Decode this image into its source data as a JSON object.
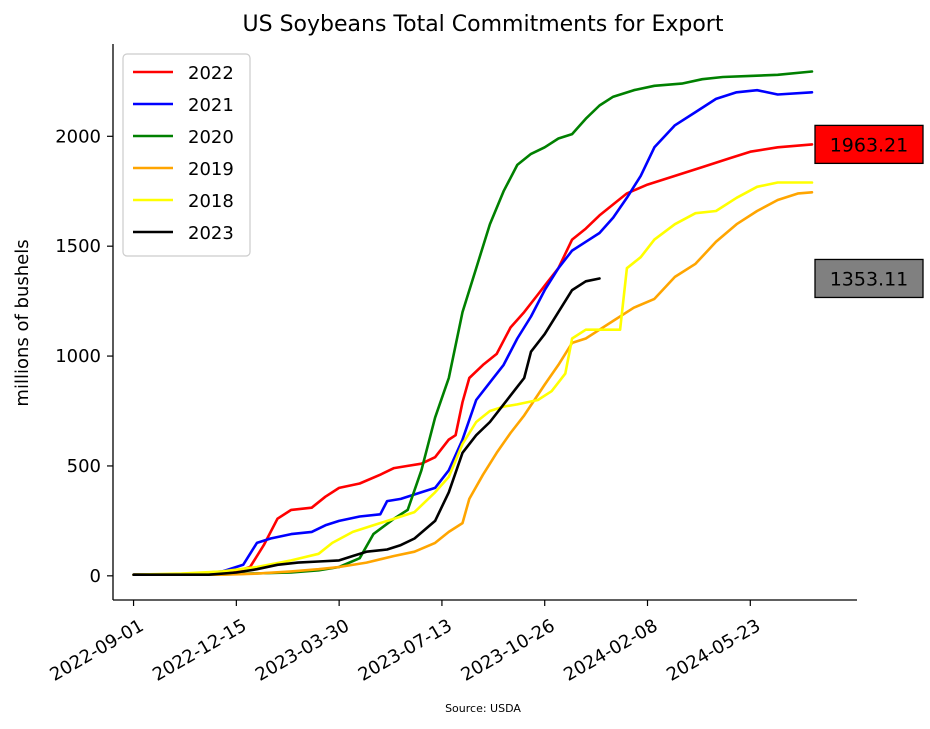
{
  "chart_data": {
    "type": "line",
    "title": "US Soybeans Total Commitments for Export",
    "ylabel": "millions of bushels",
    "xlabel": "",
    "source": "Source: USDA",
    "x_ticks": [
      "2022-09-01",
      "2022-12-15",
      "2023-03-30",
      "2023-07-13",
      "2023-10-26",
      "2024-02-08",
      "2024-05-23"
    ],
    "y_ticks": [
      "0",
      "500",
      "1000",
      "1500",
      "2000"
    ],
    "ylim": [
      -110,
      2420
    ],
    "xlim": [
      "2022-08-11",
      "2024-09-09"
    ],
    "grid": false,
    "legend_position": "upper-left",
    "series": [
      {
        "name": "2022",
        "color": "#ff0000",
        "points": [
          [
            "2022-09-01",
            5
          ],
          [
            "2022-10-20",
            5
          ],
          [
            "2022-11-24",
            10
          ],
          [
            "2022-12-15",
            20
          ],
          [
            "2022-12-29",
            40
          ],
          [
            "2023-01-12",
            140
          ],
          [
            "2023-01-26",
            260
          ],
          [
            "2023-02-09",
            300
          ],
          [
            "2023-03-02",
            310
          ],
          [
            "2023-03-16",
            360
          ],
          [
            "2023-03-30",
            400
          ],
          [
            "2023-04-20",
            420
          ],
          [
            "2023-05-11",
            460
          ],
          [
            "2023-05-25",
            490
          ],
          [
            "2023-06-08",
            500
          ],
          [
            "2023-06-22",
            510
          ],
          [
            "2023-07-06",
            540
          ],
          [
            "2023-07-20",
            620
          ],
          [
            "2023-07-27",
            640
          ],
          [
            "2023-08-03",
            790
          ],
          [
            "2023-08-10",
            900
          ],
          [
            "2023-08-24",
            960
          ],
          [
            "2023-09-07",
            1010
          ],
          [
            "2023-09-21",
            1130
          ],
          [
            "2023-10-05",
            1200
          ],
          [
            "2023-10-19",
            1280
          ],
          [
            "2023-10-26",
            1320
          ],
          [
            "2023-11-09",
            1400
          ],
          [
            "2023-11-23",
            1530
          ],
          [
            "2023-12-07",
            1580
          ],
          [
            "2023-12-21",
            1640
          ],
          [
            "2024-01-04",
            1690
          ],
          [
            "2024-01-18",
            1740
          ],
          [
            "2024-02-08",
            1780
          ],
          [
            "2024-03-07",
            1820
          ],
          [
            "2024-04-04",
            1860
          ],
          [
            "2024-05-02",
            1900
          ],
          [
            "2024-05-23",
            1930
          ],
          [
            "2024-06-20",
            1950
          ],
          [
            "2024-07-25",
            1963
          ]
        ]
      },
      {
        "name": "2021",
        "color": "#0000ff",
        "points": [
          [
            "2022-09-01",
            5
          ],
          [
            "2022-10-20",
            5
          ],
          [
            "2022-12-01",
            20
          ],
          [
            "2022-12-22",
            50
          ],
          [
            "2023-01-05",
            150
          ],
          [
            "2023-01-19",
            170
          ],
          [
            "2023-02-09",
            190
          ],
          [
            "2023-03-02",
            200
          ],
          [
            "2023-03-16",
            230
          ],
          [
            "2023-03-30",
            250
          ],
          [
            "2023-04-20",
            270
          ],
          [
            "2023-05-11",
            280
          ],
          [
            "2023-05-18",
            340
          ],
          [
            "2023-06-01",
            350
          ],
          [
            "2023-06-22",
            380
          ],
          [
            "2023-07-06",
            400
          ],
          [
            "2023-07-20",
            480
          ],
          [
            "2023-08-03",
            620
          ],
          [
            "2023-08-17",
            800
          ],
          [
            "2023-08-31",
            880
          ],
          [
            "2023-09-14",
            960
          ],
          [
            "2023-09-28",
            1080
          ],
          [
            "2023-10-12",
            1180
          ],
          [
            "2023-10-26",
            1300
          ],
          [
            "2023-11-09",
            1400
          ],
          [
            "2023-11-23",
            1480
          ],
          [
            "2023-12-07",
            1520
          ],
          [
            "2023-12-21",
            1560
          ],
          [
            "2024-01-04",
            1630
          ],
          [
            "2024-01-18",
            1720
          ],
          [
            "2024-02-01",
            1820
          ],
          [
            "2024-02-15",
            1950
          ],
          [
            "2024-03-07",
            2050
          ],
          [
            "2024-03-28",
            2110
          ],
          [
            "2024-04-18",
            2170
          ],
          [
            "2024-05-09",
            2200
          ],
          [
            "2024-05-30",
            2210
          ],
          [
            "2024-06-20",
            2190
          ],
          [
            "2024-07-25",
            2200
          ]
        ]
      },
      {
        "name": "2020",
        "color": "#008000",
        "points": [
          [
            "2022-09-01",
            5
          ],
          [
            "2022-11-24",
            5
          ],
          [
            "2022-12-29",
            10
          ],
          [
            "2023-02-09",
            15
          ],
          [
            "2023-03-09",
            25
          ],
          [
            "2023-03-30",
            40
          ],
          [
            "2023-04-20",
            80
          ],
          [
            "2023-05-04",
            190
          ],
          [
            "2023-05-25",
            260
          ],
          [
            "2023-06-08",
            300
          ],
          [
            "2023-06-22",
            480
          ],
          [
            "2023-07-06",
            720
          ],
          [
            "2023-07-20",
            900
          ],
          [
            "2023-08-03",
            1200
          ],
          [
            "2023-08-17",
            1400
          ],
          [
            "2023-08-31",
            1600
          ],
          [
            "2023-09-14",
            1750
          ],
          [
            "2023-09-28",
            1870
          ],
          [
            "2023-10-12",
            1920
          ],
          [
            "2023-10-26",
            1950
          ],
          [
            "2023-11-09",
            1990
          ],
          [
            "2023-11-23",
            2010
          ],
          [
            "2023-12-07",
            2080
          ],
          [
            "2023-12-21",
            2140
          ],
          [
            "2024-01-04",
            2180
          ],
          [
            "2024-01-25",
            2210
          ],
          [
            "2024-02-15",
            2230
          ],
          [
            "2024-03-14",
            2240
          ],
          [
            "2024-04-04",
            2260
          ],
          [
            "2024-04-25",
            2270
          ],
          [
            "2024-05-23",
            2275
          ],
          [
            "2024-06-20",
            2280
          ],
          [
            "2024-07-25",
            2295
          ]
        ]
      },
      {
        "name": "2019",
        "color": "#ffa500",
        "points": [
          [
            "2022-09-01",
            5
          ],
          [
            "2022-12-01",
            5
          ],
          [
            "2023-01-05",
            10
          ],
          [
            "2023-02-09",
            20
          ],
          [
            "2023-03-09",
            30
          ],
          [
            "2023-03-30",
            40
          ],
          [
            "2023-04-27",
            60
          ],
          [
            "2023-05-25",
            90
          ],
          [
            "2023-06-15",
            110
          ],
          [
            "2023-07-06",
            150
          ],
          [
            "2023-07-20",
            200
          ],
          [
            "2023-08-03",
            240
          ],
          [
            "2023-08-10",
            350
          ],
          [
            "2023-08-24",
            460
          ],
          [
            "2023-09-07",
            560
          ],
          [
            "2023-09-21",
            650
          ],
          [
            "2023-10-05",
            730
          ],
          [
            "2023-10-26",
            870
          ],
          [
            "2023-11-09",
            960
          ],
          [
            "2023-11-23",
            1060
          ],
          [
            "2023-12-07",
            1080
          ],
          [
            "2023-12-21",
            1120
          ],
          [
            "2024-01-04",
            1160
          ],
          [
            "2024-01-25",
            1220
          ],
          [
            "2024-02-15",
            1260
          ],
          [
            "2024-03-07",
            1360
          ],
          [
            "2024-03-28",
            1420
          ],
          [
            "2024-04-18",
            1520
          ],
          [
            "2024-05-09",
            1600
          ],
          [
            "2024-05-30",
            1660
          ],
          [
            "2024-06-20",
            1710
          ],
          [
            "2024-07-11",
            1740
          ],
          [
            "2024-07-25",
            1745
          ]
        ]
      },
      {
        "name": "2018",
        "color": "#ffff00",
        "points": [
          [
            "2022-09-01",
            5
          ],
          [
            "2022-10-20",
            10
          ],
          [
            "2022-12-01",
            20
          ],
          [
            "2023-01-05",
            40
          ],
          [
            "2023-02-09",
            70
          ],
          [
            "2023-03-09",
            100
          ],
          [
            "2023-03-23",
            150
          ],
          [
            "2023-04-13",
            200
          ],
          [
            "2023-05-04",
            230
          ],
          [
            "2023-05-25",
            260
          ],
          [
            "2023-06-15",
            290
          ],
          [
            "2023-07-06",
            380
          ],
          [
            "2023-07-20",
            450
          ],
          [
            "2023-08-03",
            600
          ],
          [
            "2023-08-17",
            700
          ],
          [
            "2023-08-31",
            750
          ],
          [
            "2023-09-14",
            770
          ],
          [
            "2023-09-28",
            780
          ],
          [
            "2023-10-19",
            800
          ],
          [
            "2023-11-02",
            840
          ],
          [
            "2023-11-16",
            920
          ],
          [
            "2023-11-23",
            1080
          ],
          [
            "2023-12-07",
            1120
          ],
          [
            "2023-12-21",
            1120
          ],
          [
            "2024-01-11",
            1120
          ],
          [
            "2024-01-18",
            1400
          ],
          [
            "2024-02-01",
            1450
          ],
          [
            "2024-02-15",
            1530
          ],
          [
            "2024-03-07",
            1600
          ],
          [
            "2024-03-28",
            1650
          ],
          [
            "2024-04-18",
            1660
          ],
          [
            "2024-05-09",
            1720
          ],
          [
            "2024-05-30",
            1770
          ],
          [
            "2024-06-20",
            1790
          ],
          [
            "2024-07-25",
            1790
          ]
        ]
      },
      {
        "name": "2023",
        "color": "#000000",
        "points": [
          [
            "2022-09-01",
            5
          ],
          [
            "2022-11-17",
            5
          ],
          [
            "2022-12-15",
            15
          ],
          [
            "2023-01-05",
            30
          ],
          [
            "2023-01-26",
            50
          ],
          [
            "2023-02-16",
            60
          ],
          [
            "2023-03-09",
            65
          ],
          [
            "2023-03-30",
            70
          ],
          [
            "2023-04-13",
            90
          ],
          [
            "2023-04-27",
            110
          ],
          [
            "2023-05-18",
            120
          ],
          [
            "2023-06-01",
            140
          ],
          [
            "2023-06-15",
            170
          ],
          [
            "2023-07-06",
            250
          ],
          [
            "2023-07-20",
            380
          ],
          [
            "2023-08-03",
            560
          ],
          [
            "2023-08-17",
            640
          ],
          [
            "2023-08-31",
            700
          ],
          [
            "2023-09-14",
            780
          ],
          [
            "2023-09-28",
            860
          ],
          [
            "2023-10-05",
            900
          ],
          [
            "2023-10-12",
            1020
          ],
          [
            "2023-10-26",
            1100
          ],
          [
            "2023-11-09",
            1200
          ],
          [
            "2023-11-23",
            1300
          ],
          [
            "2023-12-07",
            1340
          ],
          [
            "2023-12-21",
            1353
          ]
        ]
      }
    ],
    "annotations": [
      {
        "text": "1963.21",
        "value": 1963.21,
        "fill": "#ff0000"
      },
      {
        "text": "1353.11",
        "value": 1353.11,
        "fill": "#808080"
      }
    ]
  }
}
